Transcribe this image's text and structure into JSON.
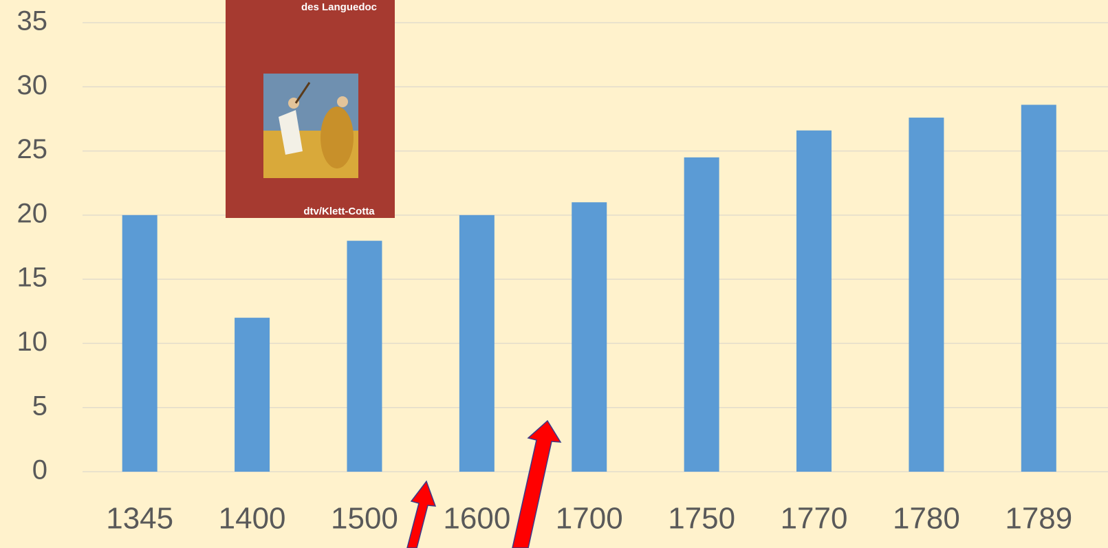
{
  "chart_data": {
    "type": "bar",
    "categories": [
      "1345",
      "1400",
      "1500",
      "1600",
      "1700",
      "1750",
      "1770",
      "1780",
      "1789"
    ],
    "values": [
      20,
      12,
      18,
      20,
      21,
      24.5,
      26.6,
      27.6,
      28.6
    ],
    "color": "#5b9bd5",
    "ylim": [
      0,
      35
    ],
    "yticks": [
      0,
      5,
      10,
      15,
      20,
      25,
      30,
      35
    ],
    "grid": true,
    "annotations": [
      "des Languedoc",
      "dtv/Klett-Cotta"
    ]
  }
}
